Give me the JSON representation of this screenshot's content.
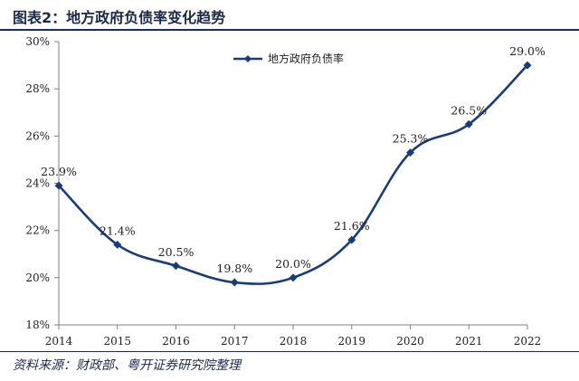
{
  "title": "图表2：地方政府负债率变化趋势",
  "source": "资料来源：财政部、粤开证券研究院整理",
  "chart_data": {
    "type": "line",
    "x": [
      "2014",
      "2015",
      "2016",
      "2017",
      "2018",
      "2019",
      "2020",
      "2021",
      "2022"
    ],
    "series": [
      {
        "name": "地方政府负债率",
        "values": [
          23.9,
          21.4,
          20.5,
          19.8,
          20.0,
          21.6,
          25.3,
          26.5,
          29.0
        ],
        "labels": [
          "23.9%",
          "21.4%",
          "20.5%",
          "19.8%",
          "20.0%",
          "21.6%",
          "25.3%",
          "26.5%",
          "29.0%"
        ],
        "color": "#1a3c7a"
      }
    ],
    "ylim": [
      18,
      30
    ],
    "yticks": [
      "18%",
      "20%",
      "22%",
      "24%",
      "26%",
      "28%",
      "30%"
    ],
    "legend_position": "top-center",
    "grid": false,
    "smooth": true
  }
}
